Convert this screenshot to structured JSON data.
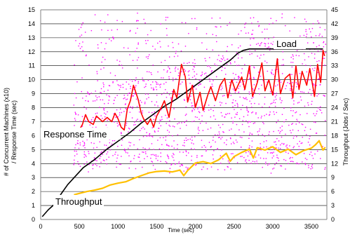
{
  "chart_data": {
    "type": "line",
    "xlabel": "Time (sec)",
    "ylabel_left": [
      "# of Concurrent Machines (x10)",
      "/ Response Time (sec)"
    ],
    "ylabel_right": "Throughput (Jobs / Sec)",
    "xlim": [
      0,
      3700
    ],
    "ylim_left": [
      0,
      15
    ],
    "ylim_right": [
      0,
      45
    ],
    "x_ticks": [
      0,
      500,
      1000,
      1500,
      2000,
      2500,
      3000,
      3500
    ],
    "y_ticks_left": [
      0,
      1,
      2,
      3,
      4,
      5,
      6,
      7,
      8,
      9,
      10,
      11,
      12,
      13,
      14,
      15
    ],
    "y_ticks_right": [
      0,
      3,
      6,
      9,
      12,
      15,
      18,
      21,
      24,
      27,
      30,
      33,
      36,
      39,
      42,
      45
    ],
    "grid": "horizontal",
    "annotations": {
      "load": "Load",
      "response_time": "Response Time",
      "throughput": "Throughput"
    },
    "colors": {
      "load": "#000000",
      "response_time": "#ff0000",
      "throughput": "#ffc000",
      "scatter": "#ff00ff",
      "grid": "#000000"
    },
    "series": [
      {
        "name": "Load",
        "axis": "left",
        "x": [
          20,
          100,
          200,
          260,
          350,
          450,
          550,
          700,
          850,
          1000,
          1150,
          1300,
          1450,
          1600,
          1750,
          1900,
          2050,
          2200,
          2350,
          2450,
          2550,
          2620,
          2700,
          2800,
          2900,
          3000,
          3100,
          3200,
          3300,
          3400,
          3500,
          3600,
          3650
        ],
        "y": [
          0.2,
          0.7,
          1.2,
          1.8,
          2.5,
          3.1,
          3.7,
          4.3,
          5.0,
          5.6,
          6.2,
          6.9,
          7.5,
          8.1,
          8.6,
          9.2,
          9.8,
          10.4,
          11.0,
          11.4,
          11.9,
          12.1,
          12.2,
          12.2,
          12.2,
          12.2,
          12.2,
          12.2,
          12.2,
          12.2,
          12.2,
          12.2,
          12.2
        ]
      },
      {
        "name": "Response Time",
        "axis": "left",
        "x": [
          380,
          500,
          540,
          580,
          620,
          680,
          720,
          800,
          860,
          920,
          960,
          1000,
          1040,
          1080,
          1120,
          1160,
          1200,
          1260,
          1300,
          1330,
          1380,
          1420,
          1460,
          1500,
          1560,
          1600,
          1660,
          1720,
          1760,
          1820,
          1870,
          1900,
          1960,
          2000,
          2060,
          2100,
          2160,
          2200,
          2260,
          2320,
          2380,
          2420,
          2470,
          2520,
          2600,
          2640,
          2700,
          2740,
          2800,
          2860,
          2900,
          2950,
          3000,
          3060,
          3100,
          3160,
          3220,
          3260,
          3300,
          3340,
          3380,
          3440,
          3480,
          3540,
          3580,
          3620,
          3650,
          3670
        ],
        "y": [
          6.4,
          6.4,
          6.8,
          7.5,
          7.0,
          6.8,
          7.4,
          7.0,
          7.3,
          7.0,
          7.6,
          7.2,
          6.6,
          6.4,
          7.9,
          8.5,
          9.6,
          8.6,
          7.6,
          7.2,
          6.8,
          7.2,
          6.6,
          7.4,
          8.0,
          8.5,
          7.3,
          9.3,
          8.7,
          11.1,
          10.2,
          8.4,
          9.6,
          8.0,
          9.1,
          7.8,
          8.9,
          9.5,
          8.5,
          9.6,
          10.1,
          8.7,
          10.0,
          9.2,
          10.2,
          9.3,
          11.0,
          8.8,
          9.8,
          11.2,
          9.2,
          10.0,
          8.9,
          11.5,
          9.0,
          10.1,
          10.4,
          8.7,
          11.0,
          9.3,
          10.6,
          9.6,
          10.8,
          8.8,
          11.1,
          9.8,
          12.1,
          11.7
        ]
      },
      {
        "name": "Throughput",
        "axis": "right",
        "x": [
          430,
          500,
          600,
          700,
          800,
          900,
          1000,
          1100,
          1200,
          1300,
          1400,
          1500,
          1600,
          1700,
          1800,
          1850,
          1900,
          2000,
          2100,
          2200,
          2300,
          2400,
          2450,
          2500,
          2600,
          2700,
          2750,
          2800,
          2900,
          3000,
          3100,
          3200,
          3300,
          3400,
          3500,
          3550,
          3600,
          3650,
          3680
        ],
        "y": [
          5.3,
          5.6,
          6.0,
          6.3,
          6.7,
          7.4,
          7.8,
          8.1,
          8.8,
          9.4,
          10.0,
          10.3,
          10.4,
          10.2,
          10.6,
          9.4,
          10.5,
          12.1,
          12.4,
          12.0,
          12.8,
          14.2,
          12.5,
          13.5,
          14.4,
          15.1,
          13.2,
          15.4,
          14.9,
          15.6,
          14.4,
          15.1,
          13.9,
          14.8,
          15.3,
          16.0,
          16.9,
          14.9,
          15.5
        ]
      }
    ]
  }
}
